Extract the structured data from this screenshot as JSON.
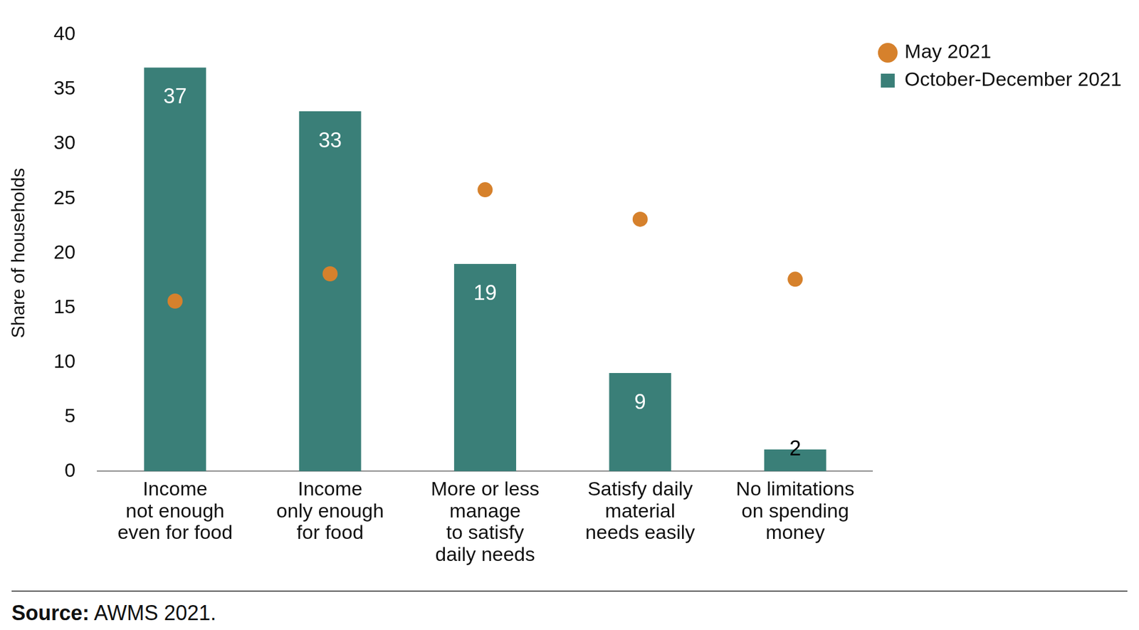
{
  "chart_data": {
    "type": "bar",
    "y_label": "Share of households",
    "categories": [
      [
        "Income",
        "not enough",
        "even for food"
      ],
      [
        "Income",
        "only enough",
        "for food"
      ],
      [
        "More or less",
        "manage",
        "to satisfy",
        "daily needs"
      ],
      [
        "Satisfy daily",
        "material",
        "needs easily"
      ],
      [
        "No limitations",
        "on spending",
        "money"
      ]
    ],
    "series": [
      {
        "name": "October-December 2021",
        "type": "bar",
        "color": "#3a7f78",
        "values": [
          37,
          33,
          19,
          9,
          2
        ],
        "data_labels": true
      },
      {
        "name": "May 2021",
        "type": "scatter",
        "marker": "circle",
        "color": "#d6812c",
        "values": [
          15.6,
          18.1,
          25.8,
          23.1,
          17.6
        ]
      }
    ],
    "ylim": [
      0,
      40
    ],
    "yticks": [
      0,
      5,
      10,
      15,
      20,
      25,
      30,
      35,
      40
    ],
    "grid": false,
    "legend": "top-right",
    "source_label": "Source:",
    "source": "AWMS 2021."
  }
}
